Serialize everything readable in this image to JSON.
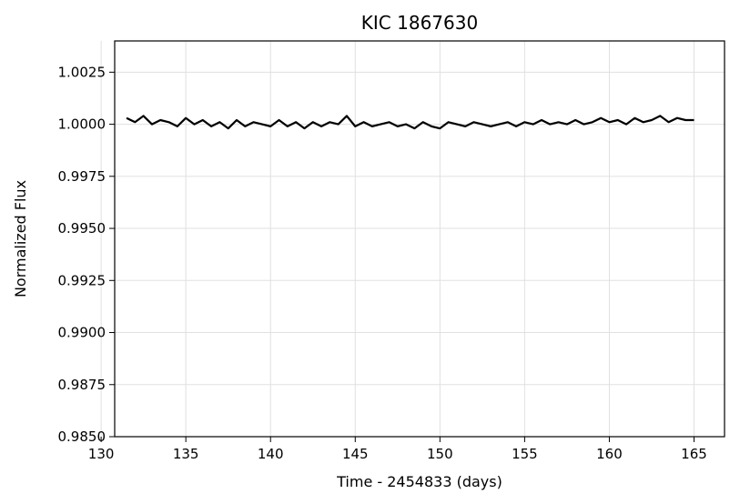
{
  "chart_data": {
    "type": "line",
    "title": "KIC 1867630",
    "xlabel": "Time - 2454833 (days)",
    "ylabel": "Normalized Flux",
    "xlim": [
      130.8,
      166.8
    ],
    "ylim": [
      0.985,
      1.004
    ],
    "x_ticks": [
      130,
      135,
      140,
      145,
      150,
      155,
      160,
      165
    ],
    "x_tick_labels": [
      "130",
      "135",
      "140",
      "145",
      "150",
      "155",
      "160",
      "165"
    ],
    "y_ticks": [
      0.985,
      0.9875,
      0.99,
      0.9925,
      0.995,
      0.9975,
      1.0,
      1.0025
    ],
    "y_tick_labels": [
      "0.9850",
      "0.9875",
      "0.9900",
      "0.9925",
      "0.9950",
      "0.9975",
      "1.0000",
      "1.0025"
    ],
    "grid": true,
    "series": [
      {
        "color": "#000000",
        "x": [
          131.5,
          132.0,
          132.5,
          133.0,
          133.5,
          134.0,
          134.5,
          135.0,
          135.5,
          136.0,
          136.5,
          137.0,
          137.5,
          138.0,
          138.5,
          139.0,
          139.5,
          140.0,
          140.5,
          141.0,
          141.5,
          142.0,
          142.5,
          143.0,
          143.5,
          144.0,
          144.5,
          145.0,
          145.5,
          146.0,
          146.5,
          147.0,
          147.5,
          148.0,
          148.5,
          149.0,
          149.5,
          150.0,
          150.5,
          151.0,
          151.5,
          152.0,
          152.5,
          153.0,
          153.5,
          154.0,
          154.5,
          155.0,
          155.5,
          156.0,
          156.5,
          157.0,
          157.5,
          158.0,
          158.5,
          159.0,
          159.5,
          160.0,
          160.5,
          161.0,
          161.5,
          162.0,
          162.5,
          163.0,
          163.5,
          164.0,
          164.5,
          165.0
        ],
        "y": [
          1.0003,
          1.0001,
          1.0004,
          1.0,
          1.0002,
          1.0001,
          0.9999,
          1.0003,
          1.0,
          1.0002,
          0.9999,
          1.0001,
          0.9998,
          1.0002,
          0.9999,
          1.0001,
          1.0,
          0.9999,
          1.0002,
          0.9999,
          1.0001,
          0.9998,
          1.0001,
          0.9999,
          1.0001,
          1.0,
          1.0004,
          0.9999,
          1.0001,
          0.9999,
          1.0,
          1.0001,
          0.9999,
          1.0,
          0.9998,
          1.0001,
          0.9999,
          0.9998,
          1.0001,
          1.0,
          0.9999,
          1.0001,
          1.0,
          0.9999,
          1.0,
          1.0001,
          0.9999,
          1.0001,
          1.0,
          1.0002,
          1.0,
          1.0001,
          1.0,
          1.0002,
          1.0,
          1.0001,
          1.0003,
          1.0001,
          1.0002,
          1.0,
          1.0003,
          1.0001,
          1.0002,
          1.0004,
          1.0001,
          1.0003,
          1.0002,
          1.0002
        ]
      }
    ]
  }
}
